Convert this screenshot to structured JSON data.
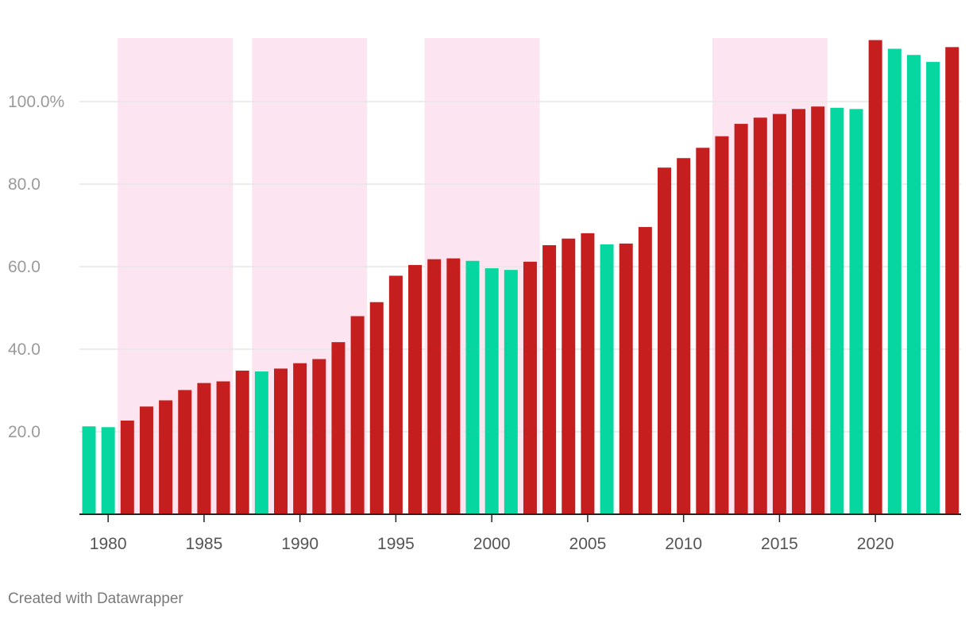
{
  "chart_data": {
    "type": "bar",
    "title": "",
    "xlabel": "",
    "ylabel": "",
    "ylim": [
      0,
      115
    ],
    "y_ticks": [
      20,
      40,
      60,
      80,
      100
    ],
    "y_tick_labels": [
      "20.0",
      "40.0",
      "60.0",
      "80.0",
      "100.0%"
    ],
    "x_ticks": [
      1980,
      1985,
      1990,
      1995,
      2000,
      2005,
      2010,
      2015,
      2020
    ],
    "x_tick_labels": [
      "1980",
      "1985",
      "1990",
      "1995",
      "2000",
      "2005",
      "2010",
      "2015",
      "2020"
    ],
    "grid": true,
    "colors": {
      "increase": "#c41e1e",
      "decrease": "#06d6a0",
      "shade": "#fde4f1",
      "grid": "#e6e6e6",
      "axis": "#222222"
    },
    "shaded_periods": [
      {
        "start": 1981,
        "end": 1987
      },
      {
        "start": 1988,
        "end": 1994
      },
      {
        "start": 1997,
        "end": 2003
      },
      {
        "start": 2012,
        "end": 2018
      }
    ],
    "years": [
      1979,
      1980,
      1981,
      1982,
      1983,
      1984,
      1985,
      1986,
      1987,
      1988,
      1989,
      1990,
      1991,
      1992,
      1993,
      1994,
      1995,
      1996,
      1997,
      1998,
      1999,
      2000,
      2001,
      2002,
      2003,
      2004,
      2005,
      2006,
      2007,
      2008,
      2009,
      2010,
      2011,
      2012,
      2013,
      2014,
      2015,
      2016,
      2017,
      2018,
      2019,
      2020,
      2021,
      2022,
      2023,
      2024
    ],
    "values": [
      21.3,
      21.1,
      22.7,
      26.1,
      27.6,
      30.1,
      31.8,
      32.2,
      34.8,
      34.6,
      35.3,
      36.6,
      37.6,
      41.7,
      48.0,
      51.4,
      57.8,
      60.4,
      61.8,
      62.0,
      61.4,
      59.6,
      59.2,
      61.2,
      65.2,
      66.8,
      68.1,
      65.4,
      65.6,
      69.6,
      84.0,
      86.3,
      88.8,
      91.6,
      94.6,
      96.1,
      97.0,
      98.2,
      98.8,
      98.5,
      98.2,
      114.9,
      112.8,
      111.3,
      109.6,
      113.2
    ],
    "series_status": [
      "decrease",
      "decrease",
      "increase",
      "increase",
      "increase",
      "increase",
      "increase",
      "increase",
      "increase",
      "decrease",
      "increase",
      "increase",
      "increase",
      "increase",
      "increase",
      "increase",
      "increase",
      "increase",
      "increase",
      "increase",
      "decrease",
      "decrease",
      "decrease",
      "increase",
      "increase",
      "increase",
      "increase",
      "decrease",
      "increase",
      "increase",
      "increase",
      "increase",
      "increase",
      "increase",
      "increase",
      "increase",
      "increase",
      "increase",
      "increase",
      "decrease",
      "decrease",
      "increase",
      "decrease",
      "decrease",
      "decrease",
      "increase"
    ]
  },
  "footer": {
    "credit": "Created with Datawrapper"
  }
}
